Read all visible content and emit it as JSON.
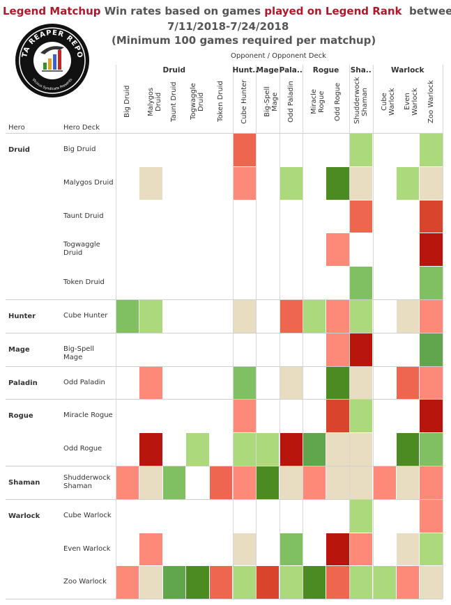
{
  "title": {
    "line1_a": "Legend Matchup",
    "line1_b": " Win rates based on games ",
    "line1_c": "played on Legend Rank",
    "line1_d": "  between",
    "line2": "7/11/2018-7/24/2018",
    "line3": "(Minimum 100 games required per matchup)"
  },
  "logo": {
    "text_top": "DATA REAPER REPORT",
    "text_bottom": "Vicious Syndicate Presents"
  },
  "headers": {
    "opponent": "Opponent  /  Opponent Deck",
    "hero": "Hero",
    "hero_deck": "Hero Deck"
  },
  "colors": {
    "dark_red": "#b8150d",
    "red": "#d9442c",
    "salmon_dark": "#ee6650",
    "salmon": "#fd8a78",
    "neutral": "#e8dcc1",
    "light_green": "#abd97b",
    "green": "#80c062",
    "mid_green": "#61a54c",
    "dark_green": "#4b8b22",
    "grid": "#d6d6d6"
  },
  "chart_data": {
    "type": "heatmap",
    "title": "Legend Matchup Win rates based on games played on Legend Rank between 7/11/2018-7/24/2018",
    "subtitle": "(Minimum 100 games required per matchup)",
    "xlabel": "Opponent  /  Opponent Deck",
    "ylabel": "Hero / Hero Deck",
    "opponent_groups": [
      {
        "label": "Druid",
        "span": 5
      },
      {
        "label": "Hunt..",
        "span": 1
      },
      {
        "label": "Mage",
        "span": 1
      },
      {
        "label": "Pala..",
        "span": 1
      },
      {
        "label": "Rogue",
        "span": 2
      },
      {
        "label": "Sha..",
        "span": 1
      },
      {
        "label": "Warlock",
        "span": 3
      }
    ],
    "columns": [
      "Big Druid",
      "Malygos Druid",
      "Taunt Druid",
      "Togwaggle Druid",
      "Token Druid",
      "Cube Hunter",
      "Big-Spell Mage",
      "Odd Paladin",
      "Miracle Rogue",
      "Odd Rogue",
      "Shudderwock Shaman",
      "Cube Warlock",
      "Even Warlock",
      "Zoo Warlock"
    ],
    "hero_groups": [
      {
        "label": "Druid",
        "span": 5
      },
      {
        "label": "Hunter",
        "span": 1
      },
      {
        "label": "Mage",
        "span": 1
      },
      {
        "label": "Paladin",
        "span": 1
      },
      {
        "label": "Rogue",
        "span": 2
      },
      {
        "label": "Shaman",
        "span": 1
      },
      {
        "label": "Warlock",
        "span": 3
      }
    ],
    "rows": [
      "Big Druid",
      "Malygos Druid",
      "Taunt Druid",
      "Togwaggle Druid",
      "Token Druid",
      "Cube Hunter",
      "Big-Spell Mage",
      "Odd Paladin",
      "Miracle Rogue",
      "Odd Rogue",
      "Shudderwock Shaman",
      "Cube Warlock",
      "Even Warlock",
      "Zoo Warlock"
    ],
    "row_labels": [
      [
        "Big Druid"
      ],
      [
        "Malygos Druid"
      ],
      [
        "Taunt Druid"
      ],
      [
        "Togwaggle",
        "Druid"
      ],
      [
        "Token Druid"
      ],
      [
        "Cube Hunter"
      ],
      [
        "Big-Spell Mage"
      ],
      [
        "Odd Paladin"
      ],
      [
        "Miracle Rogue"
      ],
      [
        "Odd Rogue"
      ],
      [
        "Shudderwock",
        "Shaman"
      ],
      [
        "Cube Warlock"
      ],
      [
        "Even Warlock"
      ],
      [
        "Zoo Warlock"
      ]
    ],
    "col_labels": [
      [
        "Big Druid"
      ],
      [
        "Malygos Druid"
      ],
      [
        "Taunt Druid"
      ],
      [
        "Togwaggle",
        "Druid"
      ],
      [
        "Token Druid"
      ],
      [
        "Cube Hunter"
      ],
      [
        "Big-Spell Mage"
      ],
      [
        "Odd Paladin"
      ],
      [
        "Miracle Rogue"
      ],
      [
        "Odd Rogue"
      ],
      [
        "Shudderwock",
        "Shaman"
      ],
      [
        "Cube Warlock"
      ],
      [
        "Even Warlock"
      ],
      [
        "Zoo Warlock"
      ]
    ],
    "color_levels": [
      "dark_red",
      "red",
      "salmon_dark",
      "salmon",
      "neutral",
      "light_green",
      "green",
      "mid_green",
      "dark_green"
    ],
    "matrix": [
      [
        null,
        null,
        null,
        null,
        null,
        "salmon_dark",
        null,
        null,
        null,
        null,
        "light_green",
        null,
        null,
        "light_green"
      ],
      [
        null,
        "neutral",
        null,
        null,
        null,
        "salmon",
        null,
        "light_green",
        null,
        "dark_green",
        "neutral",
        null,
        "light_green",
        "neutral"
      ],
      [
        null,
        null,
        null,
        null,
        null,
        null,
        null,
        null,
        null,
        null,
        "salmon_dark",
        null,
        null,
        "red"
      ],
      [
        null,
        null,
        null,
        null,
        null,
        null,
        null,
        null,
        null,
        "salmon",
        null,
        null,
        null,
        "dark_red"
      ],
      [
        null,
        null,
        null,
        null,
        null,
        null,
        null,
        null,
        null,
        null,
        "green",
        null,
        null,
        "green"
      ],
      [
        "green",
        "light_green",
        null,
        null,
        null,
        "neutral",
        null,
        "salmon_dark",
        "light_green",
        "salmon",
        "light_green",
        null,
        "neutral",
        "salmon"
      ],
      [
        null,
        null,
        null,
        null,
        null,
        null,
        null,
        null,
        null,
        "salmon",
        "dark_red",
        null,
        null,
        "mid_green"
      ],
      [
        null,
        "salmon",
        null,
        null,
        null,
        "green",
        null,
        "neutral",
        null,
        "dark_green",
        "neutral",
        null,
        "salmon_dark",
        "salmon"
      ],
      [
        null,
        null,
        null,
        null,
        null,
        "salmon",
        null,
        null,
        null,
        "red",
        "light_green",
        null,
        null,
        "dark_red"
      ],
      [
        null,
        "dark_red",
        null,
        "light_green",
        null,
        "light_green",
        "light_green",
        "dark_red",
        "mid_green",
        "neutral",
        "neutral",
        null,
        "dark_green",
        "green"
      ],
      [
        "salmon",
        "neutral",
        "green",
        null,
        "salmon_dark",
        "salmon",
        "dark_green",
        "neutral",
        "salmon",
        "neutral",
        "neutral",
        "salmon",
        "neutral",
        "salmon"
      ],
      [
        null,
        null,
        null,
        null,
        null,
        null,
        null,
        null,
        null,
        null,
        "light_green",
        null,
        null,
        "salmon"
      ],
      [
        null,
        "salmon",
        null,
        null,
        null,
        "neutral",
        null,
        "green",
        null,
        "dark_red",
        "salmon",
        null,
        "neutral",
        "light_green"
      ],
      [
        "salmon",
        "neutral",
        "mid_green",
        "dark_green",
        "salmon_dark",
        "light_green",
        "red",
        "light_green",
        "dark_green",
        "salmon_dark",
        "light_green",
        "light_green",
        "salmon",
        "neutral"
      ]
    ]
  }
}
